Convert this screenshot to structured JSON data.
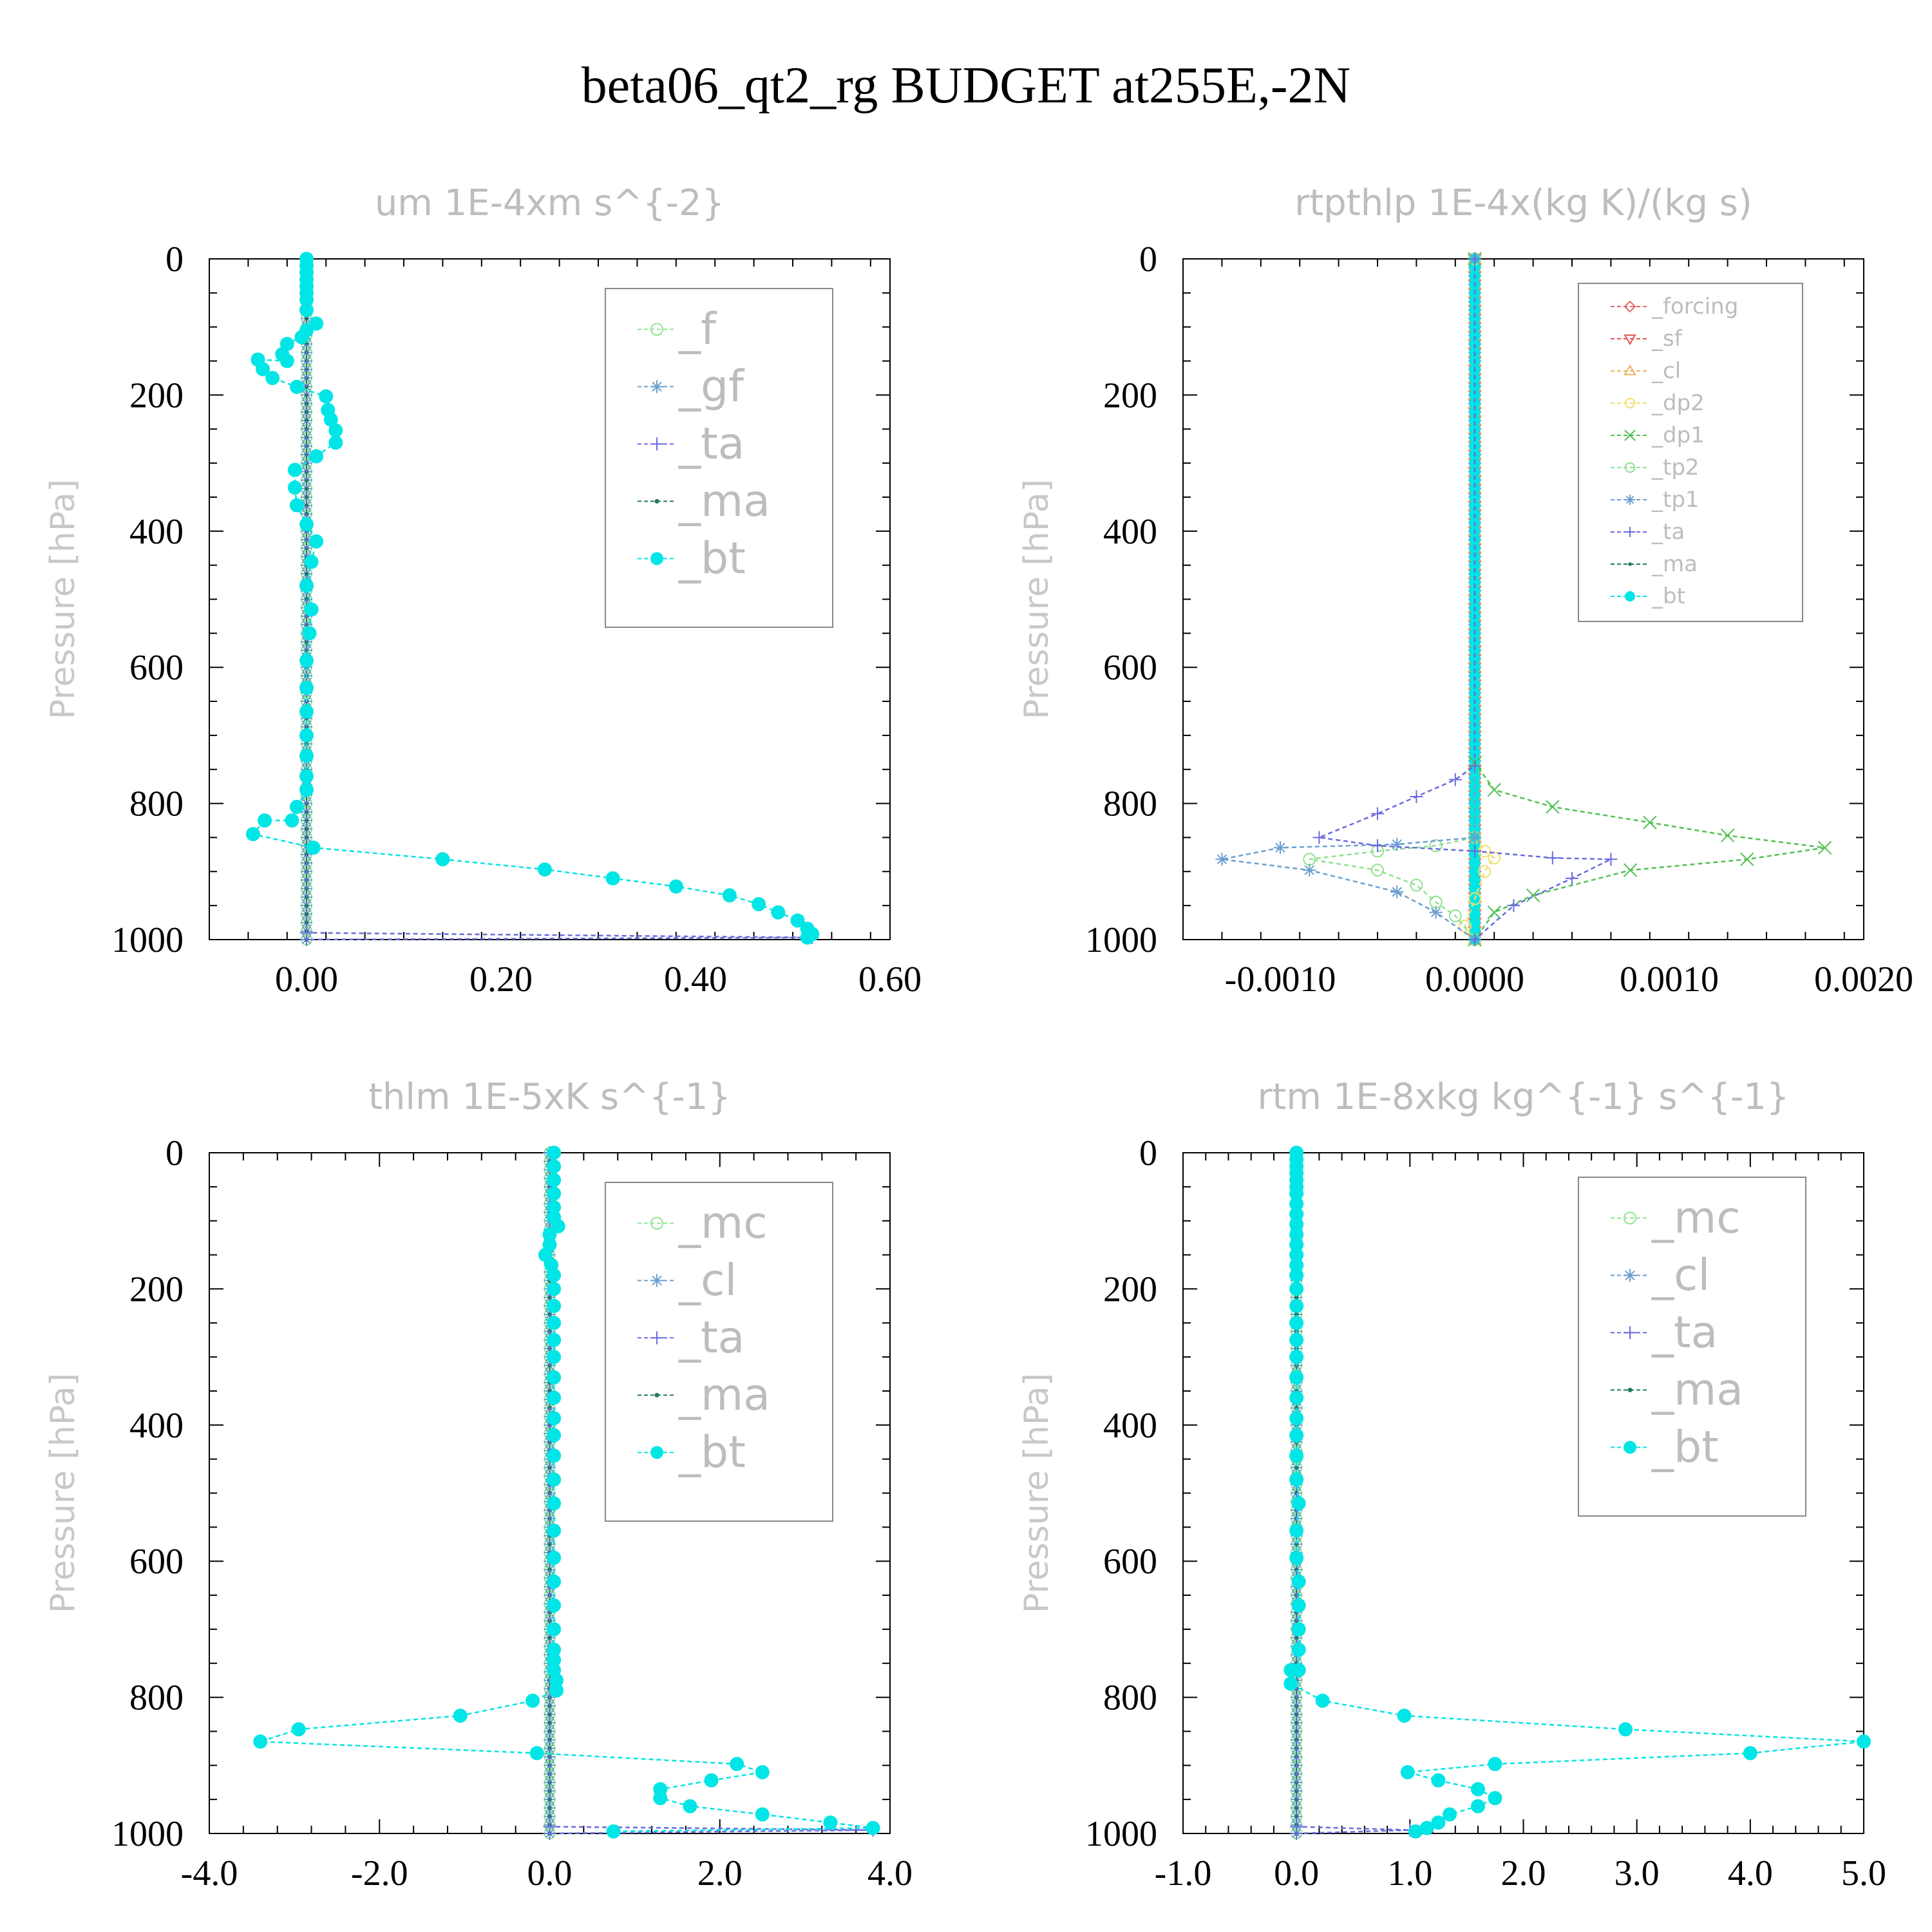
{
  "title": "beta06_qt2_rg  BUDGET at255E,-2N",
  "chart_data": [
    {
      "type": "line",
      "title": "um  1E-4xm s^{-2}",
      "ylabel": "Pressure [hPa]",
      "xlim": [
        -0.1,
        0.6
      ],
      "ylim": [
        1000,
        0
      ],
      "xticks": [
        "0.00",
        "0.20",
        "0.40",
        "0.60"
      ],
      "xtick_values": [
        0.0,
        0.2,
        0.4,
        0.6
      ],
      "yticks": [
        "0",
        "200",
        "400",
        "600",
        "800",
        "1000"
      ],
      "legend_position": "top-right",
      "series": [
        {
          "name": "_f",
          "color": "#8ee58e",
          "marker": "circle-open",
          "style": "zero",
          "x": [],
          "y": []
        },
        {
          "name": "_gf",
          "color": "#6a9fd0",
          "marker": "star",
          "style": "zero",
          "x": [],
          "y": []
        },
        {
          "name": "_ta",
          "color": "#6a6ae0",
          "marker": "plus",
          "style": "line",
          "x": [
            0,
            0,
            0.52,
            0
          ],
          "y": [
            0,
            990,
            997,
            1000
          ]
        },
        {
          "name": "_ma",
          "color": "#1e7a5a",
          "marker": "dot",
          "style": "zero",
          "x": [],
          "y": []
        },
        {
          "name": "_bt",
          "color": "#00e5e5",
          "marker": "circle-filled",
          "style": "line",
          "x": [
            0.0,
            0.0,
            0.0,
            0.0,
            0.0,
            0.0,
            0.0,
            0.0,
            0.01,
            0.0,
            -0.005,
            -0.02,
            -0.025,
            -0.02,
            -0.05,
            -0.045,
            -0.035,
            -0.01,
            0.02,
            0.022,
            0.025,
            0.03,
            0.03,
            0.01,
            -0.012,
            -0.012,
            -0.01,
            0.0,
            0.01,
            0.005,
            0.0,
            0.005,
            0.003,
            0.0,
            0.0,
            0.0,
            0.0,
            0.0,
            0.0,
            0.0,
            -0.01,
            -0.015,
            -0.043,
            -0.055,
            0.007,
            0.14,
            0.245,
            0.315,
            0.38,
            0.435,
            0.465,
            0.485,
            0.505,
            0.515,
            0.52,
            0.515
          ],
          "y": [
            0,
            10,
            20,
            30,
            40,
            50,
            60,
            75,
            95,
            105,
            115,
            125,
            140,
            150,
            148,
            162,
            175,
            188,
            202,
            222,
            236,
            252,
            270,
            290,
            310,
            336,
            362,
            390,
            415,
            445,
            480,
            515,
            550,
            590,
            630,
            665,
            700,
            730,
            760,
            780,
            805,
            825,
            825,
            845,
            865,
            882,
            897,
            910,
            922,
            935,
            948,
            960,
            972,
            984,
            992,
            997
          ]
        }
      ]
    },
    {
      "type": "line",
      "title": "rtpthlp  1E-4x(kg K)/(kg s)",
      "ylabel": "Pressure [hPa]",
      "xlim": [
        -0.0015,
        0.002
      ],
      "ylim": [
        1000,
        0
      ],
      "xticks": [
        "-0.0010",
        "0.0000",
        "0.0010",
        "0.0020"
      ],
      "xtick_values": [
        -0.001,
        0.0,
        0.001,
        0.002
      ],
      "yticks": [
        "0",
        "200",
        "400",
        "600",
        "800",
        "1000"
      ],
      "legend_position": "top-right",
      "series": [
        {
          "name": "_forcing",
          "color": "#e06a6a",
          "marker": "diamond",
          "style": "zero",
          "x": [],
          "y": []
        },
        {
          "name": "_sf",
          "color": "#e05050",
          "marker": "triangle-down",
          "style": "zero",
          "x": [],
          "y": []
        },
        {
          "name": "_cl",
          "color": "#f0b060",
          "marker": "triangle-up",
          "style": "zero",
          "x": [],
          "y": []
        },
        {
          "name": "_dp2",
          "color": "#f0e070",
          "marker": "circle-open",
          "style": "line",
          "x": [
            0.0,
            0.0,
            5e-05,
            0.0001,
            5e-05,
            0.0,
            -5e-05,
            0.0
          ],
          "y": [
            0,
            850,
            870,
            880,
            900,
            940,
            980,
            1000
          ]
        },
        {
          "name": "_dp1",
          "color": "#50c050",
          "marker": "cross",
          "style": "line",
          "x": [
            0.0,
            0.0,
            0.0001,
            0.0004,
            0.0009,
            0.0013,
            0.0018,
            0.0014,
            0.0008,
            0.0003,
            0.0001,
            0.0
          ],
          "y": [
            0,
            740,
            780,
            805,
            828,
            847,
            865,
            882,
            898,
            935,
            960,
            1000
          ]
        },
        {
          "name": "_tp2",
          "color": "#90e090",
          "marker": "circle-open",
          "style": "line",
          "x": [
            0.0,
            0.0,
            -0.0002,
            -0.0005,
            -0.00085,
            -0.0005,
            -0.0003,
            -0.0002,
            -0.0001,
            0.0
          ],
          "y": [
            0,
            850,
            862,
            870,
            882,
            898,
            920,
            945,
            965,
            1000
          ]
        },
        {
          "name": "_tp1",
          "color": "#6a9fd0",
          "marker": "star",
          "style": "line",
          "x": [
            0.0,
            0.0,
            -0.0004,
            -0.001,
            -0.0013,
            -0.00085,
            -0.0004,
            -0.0002,
            0.0
          ],
          "y": [
            0,
            850,
            860,
            865,
            882,
            898,
            930,
            960,
            1000
          ]
        },
        {
          "name": "_ta",
          "color": "#6a6ae0",
          "marker": "plus",
          "style": "line",
          "x": [
            0.0,
            0.0,
            -0.0001,
            -0.0003,
            -0.0005,
            -0.0008,
            -0.0005,
            0.0,
            0.0004,
            0.0007,
            0.0005,
            0.0002,
            0.0
          ],
          "y": [
            0,
            745,
            765,
            790,
            815,
            850,
            862,
            870,
            880,
            882,
            910,
            950,
            1000
          ]
        },
        {
          "name": "_ma",
          "color": "#1e7a5a",
          "marker": "dot",
          "style": "zero",
          "x": [],
          "y": []
        },
        {
          "name": "_bt",
          "color": "#00e5e5",
          "marker": "circle-filled",
          "style": "zero",
          "x": [],
          "y": []
        }
      ]
    },
    {
      "type": "line",
      "title": "thlm  1E-5xK s^{-1}",
      "ylabel": "Pressure [hPa]",
      "xlim": [
        -4.0,
        4.0
      ],
      "ylim": [
        1000,
        0
      ],
      "xticks": [
        "-4.0",
        "-2.0",
        "0.0",
        "2.0",
        "4.0"
      ],
      "xtick_values": [
        -4.0,
        -2.0,
        0.0,
        2.0,
        4.0
      ],
      "yticks": [
        "0",
        "200",
        "400",
        "600",
        "800",
        "1000"
      ],
      "legend_position": "top-right",
      "series": [
        {
          "name": "_mc",
          "color": "#8ee58e",
          "marker": "circle-open",
          "style": "zero",
          "x": [],
          "y": []
        },
        {
          "name": "_cl",
          "color": "#6a9fd0",
          "marker": "star",
          "style": "zero",
          "x": [],
          "y": []
        },
        {
          "name": "_ta",
          "color": "#6a6ae0",
          "marker": "plus",
          "style": "line",
          "x": [
            0,
            0,
            3.8,
            0
          ],
          "y": [
            0,
            990,
            995,
            1000
          ]
        },
        {
          "name": "_ma",
          "color": "#1e7a5a",
          "marker": "dot",
          "style": "zero",
          "x": [],
          "y": []
        },
        {
          "name": "_bt",
          "color": "#00e5e5",
          "marker": "circle-filled",
          "style": "line",
          "x": [
            0.05,
            0.05,
            0.05,
            0.05,
            0.05,
            0.05,
            0.1,
            0.0,
            0.0,
            -0.05,
            0.02,
            0.05,
            0.05,
            0.05,
            0.05,
            0.05,
            0.05,
            0.05,
            0.05,
            0.05,
            0.05,
            0.05,
            0.05,
            0.05,
            0.05,
            0.05,
            0.05,
            0.05,
            0.05,
            0.05,
            0.05,
            0.05,
            0.08,
            0.08,
            -0.2,
            -1.05,
            -2.95,
            -3.4,
            -0.15,
            2.2,
            2.5,
            1.9,
            1.3,
            1.3,
            1.65,
            2.5,
            3.3,
            3.8,
            0.75
          ],
          "y": [
            0,
            20,
            40,
            60,
            80,
            95,
            108,
            120,
            135,
            150,
            165,
            180,
            200,
            225,
            250,
            275,
            300,
            330,
            360,
            390,
            415,
            445,
            480,
            515,
            555,
            595,
            630,
            665,
            700,
            730,
            745,
            760,
            775,
            790,
            805,
            827,
            847,
            865,
            882,
            898,
            910,
            922,
            935,
            948,
            960,
            972,
            984,
            992,
            997
          ]
        }
      ]
    },
    {
      "type": "line",
      "title": "rtm  1E-8xkg kg^{-1} s^{-1}",
      "ylabel": "Pressure [hPa]",
      "xlim": [
        -1.0,
        5.0
      ],
      "ylim": [
        1000,
        0
      ],
      "xticks": [
        "-1.0",
        "0.0",
        "1.0",
        "2.0",
        "3.0",
        "4.0",
        "5.0"
      ],
      "xtick_values": [
        -1.0,
        0.0,
        1.0,
        2.0,
        3.0,
        4.0,
        5.0
      ],
      "yticks": [
        "0",
        "200",
        "400",
        "600",
        "800",
        "1000"
      ],
      "legend_position": "top-right",
      "series": [
        {
          "name": "_mc",
          "color": "#8ee58e",
          "marker": "circle-open",
          "style": "zero",
          "x": [],
          "y": []
        },
        {
          "name": "_cl",
          "color": "#6a9fd0",
          "marker": "star",
          "style": "zero",
          "x": [],
          "y": []
        },
        {
          "name": "_ta",
          "color": "#6a6ae0",
          "marker": "plus",
          "style": "line",
          "x": [
            0,
            0,
            1.0,
            0
          ],
          "y": [
            0,
            990,
            995,
            1000
          ]
        },
        {
          "name": "_ma",
          "color": "#1e7a5a",
          "marker": "dot",
          "style": "zero",
          "x": [],
          "y": []
        },
        {
          "name": "_bt",
          "color": "#00e5e5",
          "marker": "circle-filled",
          "style": "line",
          "x": [
            0.0,
            0.0,
            0.0,
            0.0,
            0.0,
            0.0,
            0.0,
            0.0,
            0.0,
            0.0,
            0.0,
            0.0,
            0.0,
            0.0,
            0.0,
            0.0,
            0.0,
            0.0,
            0.0,
            0.0,
            0.0,
            0.0,
            0.0,
            0.0,
            0.0,
            0.0,
            0.02,
            0.0,
            0.0,
            0.02,
            0.02,
            0.02,
            0.02,
            0.02,
            -0.05,
            -0.05,
            0.23,
            0.95,
            2.9,
            5.0,
            4.0,
            1.75,
            0.98,
            1.25,
            1.6,
            1.75,
            1.6,
            1.35,
            1.25,
            1.15,
            1.05
          ],
          "y": [
            0,
            10,
            20,
            30,
            40,
            50,
            60,
            75,
            90,
            105,
            120,
            135,
            150,
            165,
            180,
            200,
            225,
            250,
            275,
            300,
            330,
            360,
            390,
            415,
            445,
            480,
            515,
            555,
            595,
            630,
            665,
            700,
            730,
            760,
            760,
            780,
            805,
            827,
            847,
            865,
            882,
            898,
            910,
            922,
            935,
            948,
            960,
            972,
            984,
            992,
            997
          ]
        }
      ]
    }
  ]
}
